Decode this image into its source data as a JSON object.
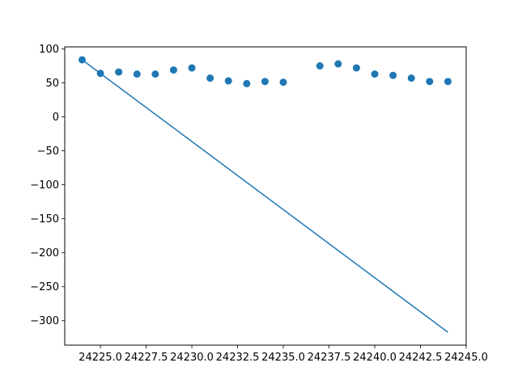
{
  "chart_data": {
    "type": "scatter",
    "title": "",
    "xlabel": "",
    "ylabel": "",
    "xlim": [
      24223.05,
      24245.0
    ],
    "ylim": [
      -336,
      103
    ],
    "grid": false,
    "legend": "none",
    "x_tick_values": [
      24225.0,
      24227.5,
      24230.0,
      24232.5,
      24235.0,
      24237.5,
      24240.0,
      24242.5,
      24245.0
    ],
    "x_tick_labels": [
      "24225.0",
      "24227.5",
      "24230.0",
      "24232.5",
      "24235.0",
      "24237.5",
      "24240.0",
      "24242.5",
      "24245.0"
    ],
    "y_tick_values": [
      100,
      50,
      0,
      -50,
      -100,
      -150,
      -200,
      -250,
      -300
    ],
    "y_tick_labels": [
      "100",
      "50",
      "0",
      "−50",
      "−100",
      "−150",
      "−200",
      "−250",
      "−300"
    ],
    "series": [
      {
        "kind": "scatter",
        "color": "#1f77b4",
        "x": [
          24224,
          24225,
          24226,
          24227,
          24228,
          24229,
          24230,
          24231,
          24232,
          24233,
          24234,
          24235,
          24237,
          24238,
          24239,
          24240,
          24241,
          24242,
          24243,
          24244
        ],
        "y": [
          84,
          64,
          66,
          63,
          63,
          69,
          72,
          57,
          53,
          49,
          52,
          51,
          75,
          78,
          72,
          63,
          61,
          57,
          52,
          52
        ]
      },
      {
        "kind": "line",
        "color": "#1f77b4",
        "x": [
          24224,
          24244
        ],
        "y": [
          84,
          -317
        ]
      }
    ]
  }
}
